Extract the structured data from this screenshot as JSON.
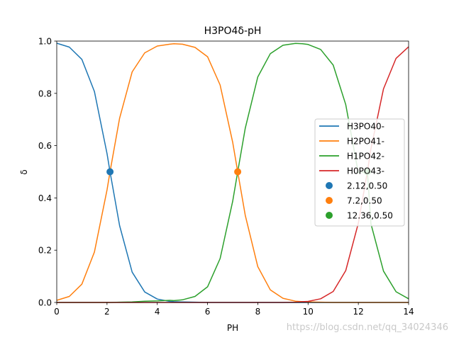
{
  "chart_data": {
    "type": "line",
    "title": "H3PO4δ-pH",
    "xlabel": "PH",
    "ylabel": "δ",
    "xlim": [
      0,
      14
    ],
    "ylim": [
      0.0,
      1.0
    ],
    "xticks": [
      "0",
      "2",
      "4",
      "6",
      "8",
      "10",
      "12",
      "14"
    ],
    "yticks": [
      "0.0",
      "0.2",
      "0.4",
      "0.6",
      "0.8",
      "1.0"
    ],
    "grid": false,
    "legend_position": "center-right",
    "pKa": [
      2.12,
      7.2,
      12.36
    ],
    "x": [
      0,
      0.5,
      1,
      1.5,
      2,
      2.12,
      2.5,
      3,
      3.5,
      4,
      4.5,
      4.66,
      5,
      5.5,
      6,
      6.5,
      7,
      7.2,
      7.5,
      8,
      8.5,
      9,
      9.5,
      9.78,
      10,
      10.5,
      11,
      11.5,
      12,
      12.36,
      12.5,
      13,
      13.5,
      14
    ],
    "series": [
      {
        "name": "H3PO40-",
        "color": "#1f77b4",
        "values": [
          0.992,
          0.977,
          0.93,
          0.807,
          0.569,
          0.5,
          0.294,
          0.116,
          0.04,
          0.013,
          0.004,
          0.003,
          0.002,
          0.001,
          0,
          0,
          0,
          0,
          0,
          0,
          0,
          0,
          0,
          0,
          0,
          0,
          0,
          0,
          0,
          0,
          0,
          0,
          0,
          0
        ]
      },
      {
        "name": "H2PO41-",
        "color": "#ff7f0e",
        "values": [
          0.008,
          0.023,
          0.07,
          0.193,
          0.431,
          0.5,
          0.705,
          0.882,
          0.955,
          0.981,
          0.988,
          0.99,
          0.988,
          0.976,
          0.94,
          0.832,
          0.613,
          0.5,
          0.334,
          0.137,
          0.048,
          0.016,
          0.005,
          0.003,
          0.002,
          0.001,
          0,
          0,
          0,
          0,
          0,
          0,
          0,
          0
        ]
      },
      {
        "name": "H1PO42-",
        "color": "#2ca02c",
        "values": [
          0,
          0,
          0,
          0,
          0,
          0,
          0.001,
          0.002,
          0.005,
          0.006,
          0.008,
          0.007,
          0.01,
          0.023,
          0.06,
          0.168,
          0.387,
          0.5,
          0.666,
          0.863,
          0.952,
          0.984,
          0.991,
          0.99,
          0.987,
          0.968,
          0.908,
          0.757,
          0.496,
          0.5,
          0.301,
          0.12,
          0.041,
          0.014
        ]
      },
      {
        "name": "H0PO43-",
        "color": "#d62728",
        "values": [
          0,
          0,
          0,
          0,
          0,
          0,
          0,
          0,
          0,
          0,
          0,
          0,
          0,
          0,
          0,
          0,
          0,
          0,
          0,
          0,
          0,
          0,
          0.001,
          0.003,
          0.004,
          0.014,
          0.042,
          0.122,
          0.303,
          0.5,
          0.588,
          0.817,
          0.934,
          0.978
        ]
      }
    ],
    "points": [
      {
        "label": "2.12,0.50",
        "x": 2.12,
        "y": 0.5,
        "color": "#1f77b4"
      },
      {
        "label": "7.2,0.50",
        "x": 7.2,
        "y": 0.5,
        "color": "#ff7f0e"
      },
      {
        "label": "12.36,0.50",
        "x": 12.36,
        "y": 0.5,
        "color": "#2ca02c"
      }
    ],
    "watermark": "https://blog.csdn.net/qq_34024346"
  }
}
